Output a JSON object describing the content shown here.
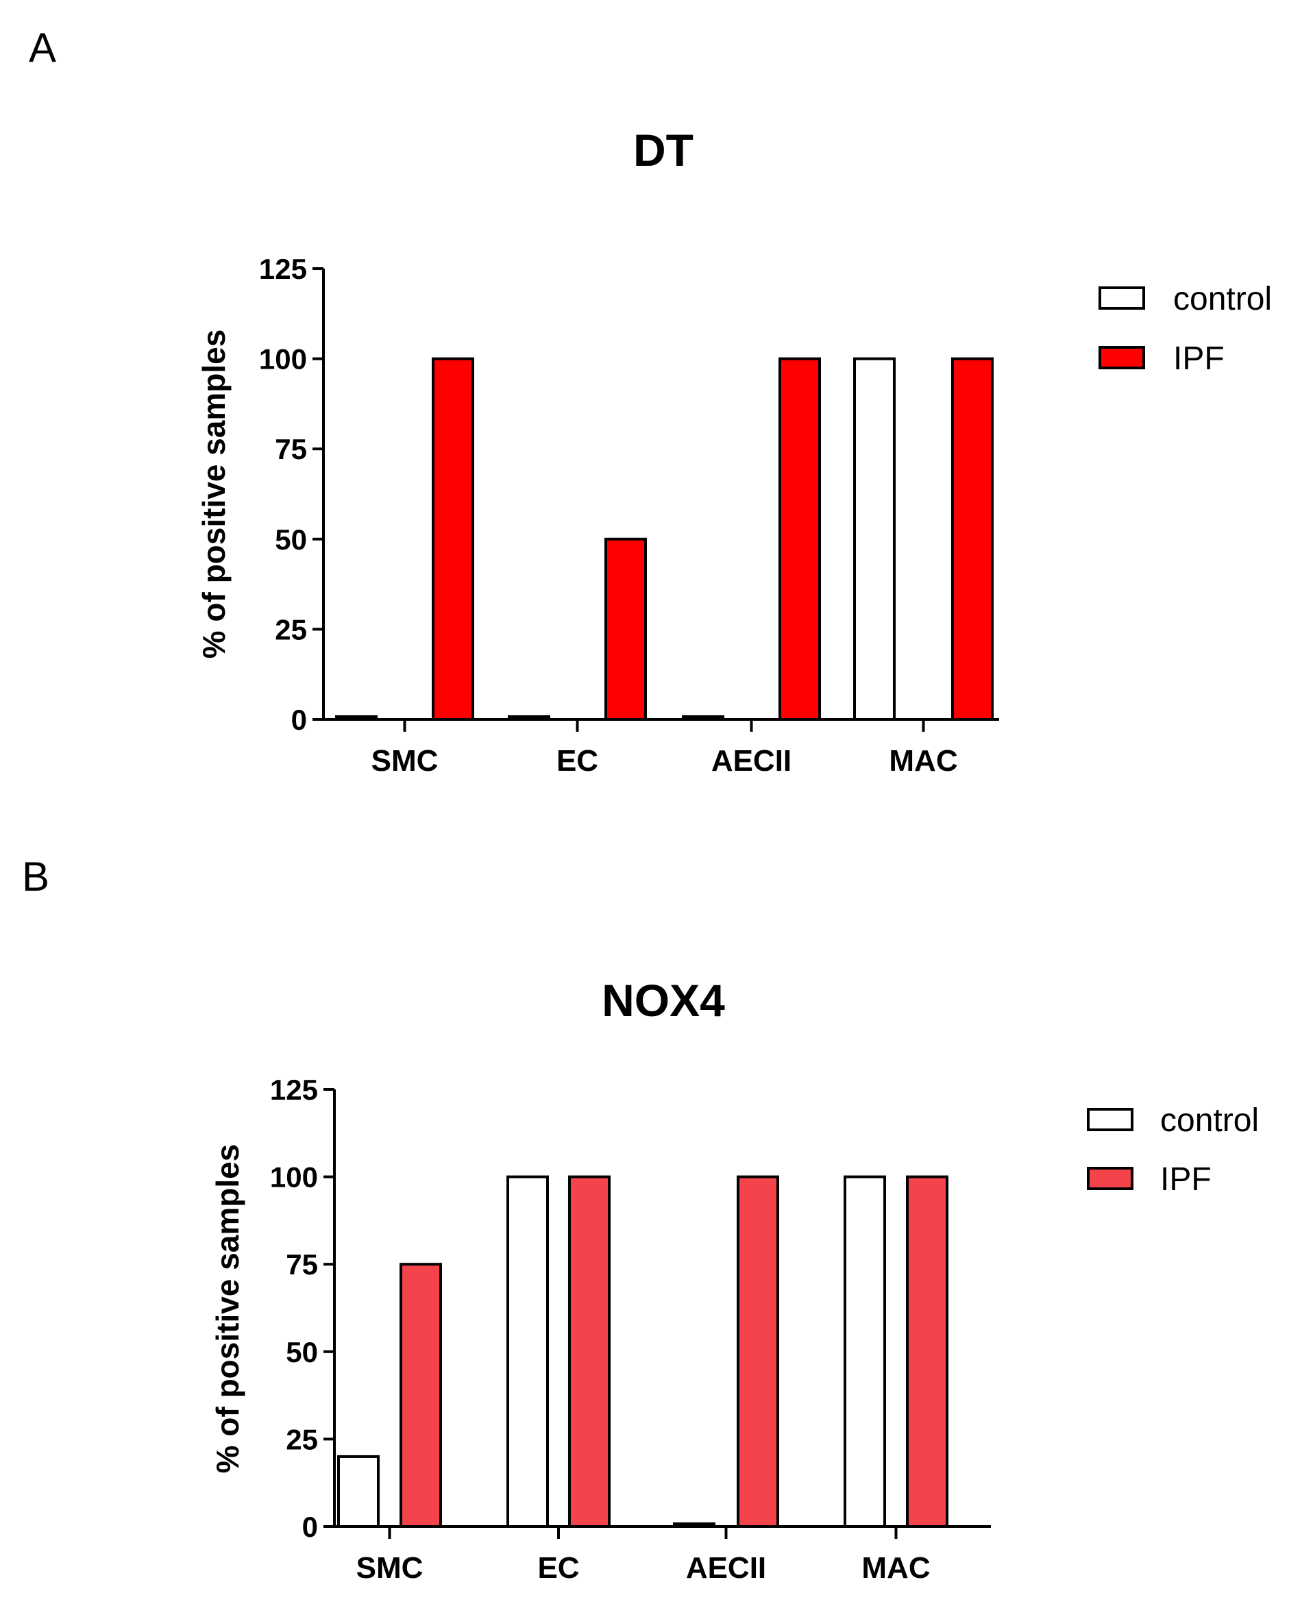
{
  "panels": {
    "a": "A",
    "b": "B"
  },
  "legend": {
    "control": "control",
    "ipf": "IPF"
  },
  "colors": {
    "control": "#ffffff",
    "ipf_dt": "#ff0000",
    "ipf_nox4": "#f5434b",
    "axis": "#000000"
  },
  "chart_data": [
    {
      "type": "bar",
      "title": "DT",
      "panel": "A",
      "categories": [
        "SMC",
        "EC",
        "AECII",
        "MAC"
      ],
      "series": [
        {
          "name": "control",
          "values": [
            0,
            0,
            0,
            100
          ]
        },
        {
          "name": "IPF",
          "values": [
            100,
            50,
            100,
            100
          ]
        }
      ],
      "xlabel": "",
      "ylabel": "% of positive samples",
      "ylim": [
        0,
        125
      ],
      "yticks": [
        0,
        25,
        50,
        75,
        100,
        125
      ],
      "legend_position": "right"
    },
    {
      "type": "bar",
      "title": "NOX4",
      "panel": "B",
      "categories": [
        "SMC",
        "EC",
        "AECII",
        "MAC"
      ],
      "series": [
        {
          "name": "control",
          "values": [
            20,
            100,
            0,
            100
          ]
        },
        {
          "name": "IPF",
          "values": [
            75,
            100,
            100,
            100
          ]
        }
      ],
      "xlabel": "",
      "ylabel": "% of positive samples",
      "ylim": [
        0,
        125
      ],
      "yticks": [
        0,
        25,
        50,
        75,
        100,
        125
      ],
      "legend_position": "right"
    }
  ]
}
